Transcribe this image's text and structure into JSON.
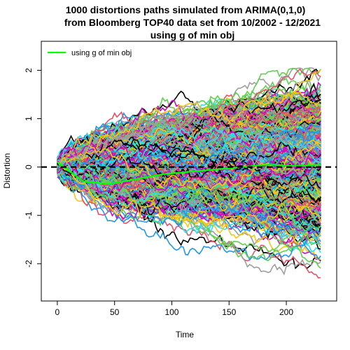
{
  "chart_data": {
    "type": "line",
    "title_lines": [
      "1000 distortions paths simulated from ARIMA(0,1,0)",
      "from Bloomberg TOP40  data set from 10/2002 - 12/2021",
      "using g of min obj"
    ],
    "xlabel": "Time",
    "ylabel": "Distortion",
    "xlim": [
      -14,
      244
    ],
    "ylim": [
      -2.77,
      2.6
    ],
    "x_ticks": [
      0,
      50,
      100,
      150,
      200
    ],
    "y_ticks": [
      -2,
      -1,
      0,
      1,
      2
    ],
    "x_tick_labels": [
      "0",
      "50",
      "100",
      "150",
      "200"
    ],
    "y_tick_labels": [
      "-2",
      "-1",
      "0",
      "1",
      "2"
    ],
    "n_paths": 1000,
    "n_steps": 230,
    "path_spread_sd": [
      0.13,
      2.0
    ],
    "reference_line": {
      "y": 0,
      "style": "dashed",
      "color": "#000000"
    },
    "highlight_path": {
      "name": "using g of min obj",
      "color": "#00ff00",
      "values": [
        0.1,
        -0.3,
        -0.35,
        -0.25,
        -0.15,
        -0.1,
        -0.05,
        0.0,
        0.05,
        0.02,
        0.05
      ]
    },
    "legend": {
      "position": "top-left",
      "entries": [
        {
          "label": "using g of min obj",
          "color": "#00ff00"
        }
      ]
    },
    "grid": false,
    "palette": [
      "#000000",
      "#DF536B",
      "#61D04F",
      "#2297E6",
      "#28E2E5",
      "#CD0BBC",
      "#F5C710",
      "#9E9E9E"
    ]
  }
}
